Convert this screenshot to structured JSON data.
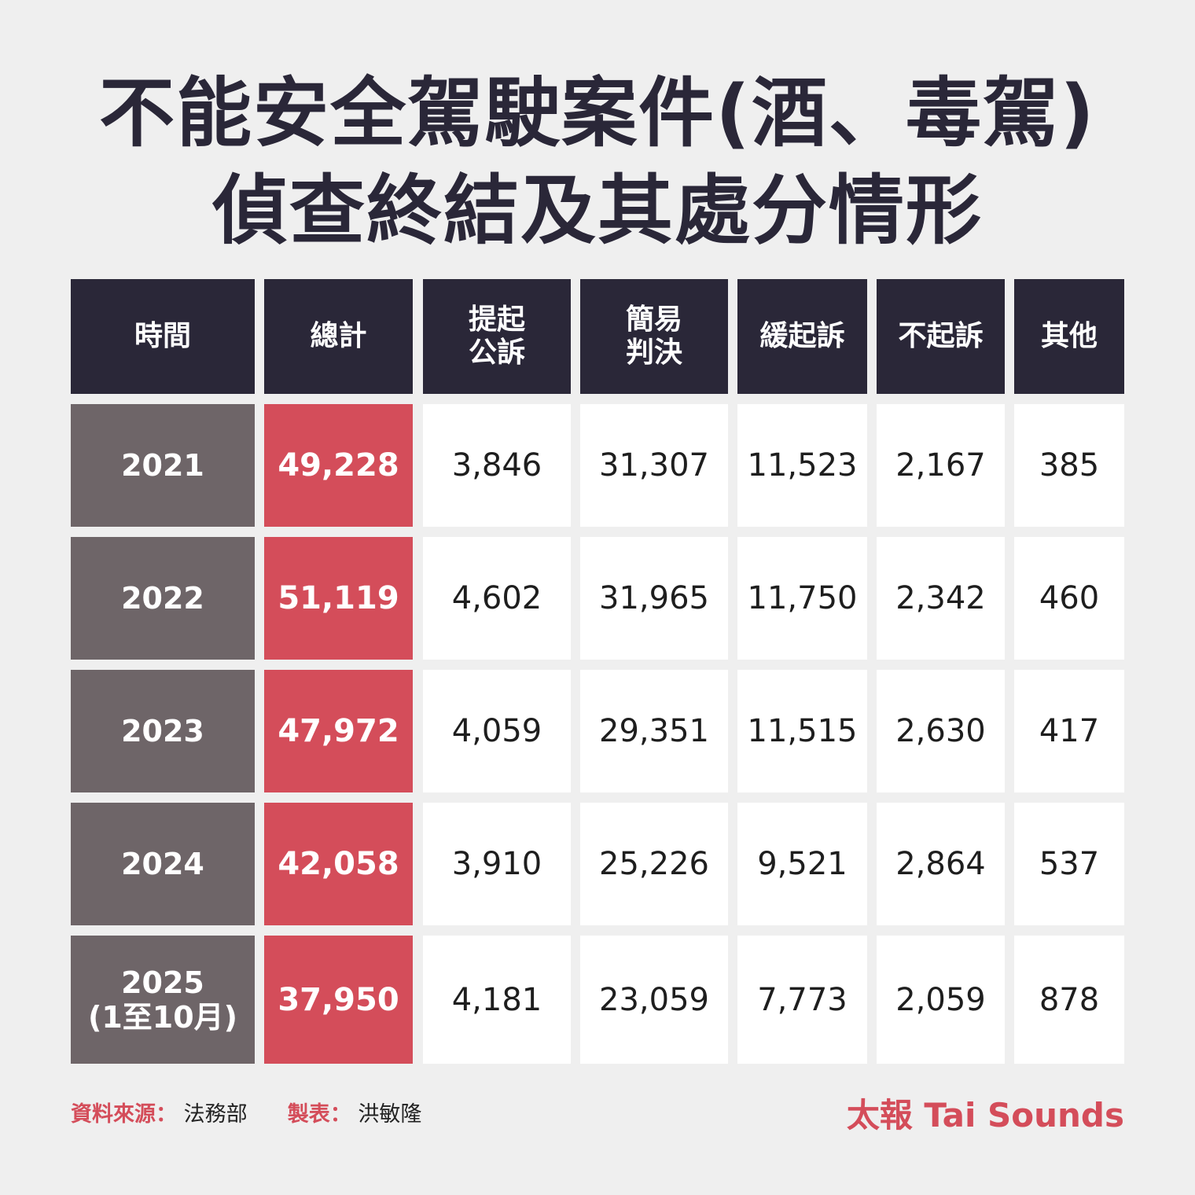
{
  "title": {
    "line1": "不能安全駕駛案件(酒、毒駕)",
    "line2": "偵查終結及其處分情形"
  },
  "table": {
    "headers": [
      "時間",
      "總計",
      "提起\n公訴",
      "簡易\n判決",
      "緩起訴",
      "不起訴",
      "其他"
    ],
    "rows": [
      [
        "2021",
        "49,228",
        "3,846",
        "31,307",
        "11,523",
        "2,167",
        "385"
      ],
      [
        "2022",
        "51,119",
        "4,602",
        "31,965",
        "11,750",
        "2,342",
        "460"
      ],
      [
        "2023",
        "47,972",
        "4,059",
        "29,351",
        "11,515",
        "2,630",
        "417"
      ],
      [
        "2024",
        "42,058",
        "3,910",
        "25,226",
        "9,521",
        "2,864",
        "537"
      ],
      [
        "2025\n(1至10月)",
        "37,950",
        "4,181",
        "23,059",
        "7,773",
        "2,059",
        "878"
      ]
    ]
  },
  "footer": {
    "source_label": "資料來源：",
    "source_value": "法務部",
    "maker_label": "製表：",
    "maker_value": "洪敏隆",
    "brand": "太報 Tai Sounds"
  },
  "colors": {
    "header_bg": "#2a2738",
    "year_bg": "#6e6568",
    "total_bg": "#d44d5a",
    "accent": "#d44d5a"
  }
}
